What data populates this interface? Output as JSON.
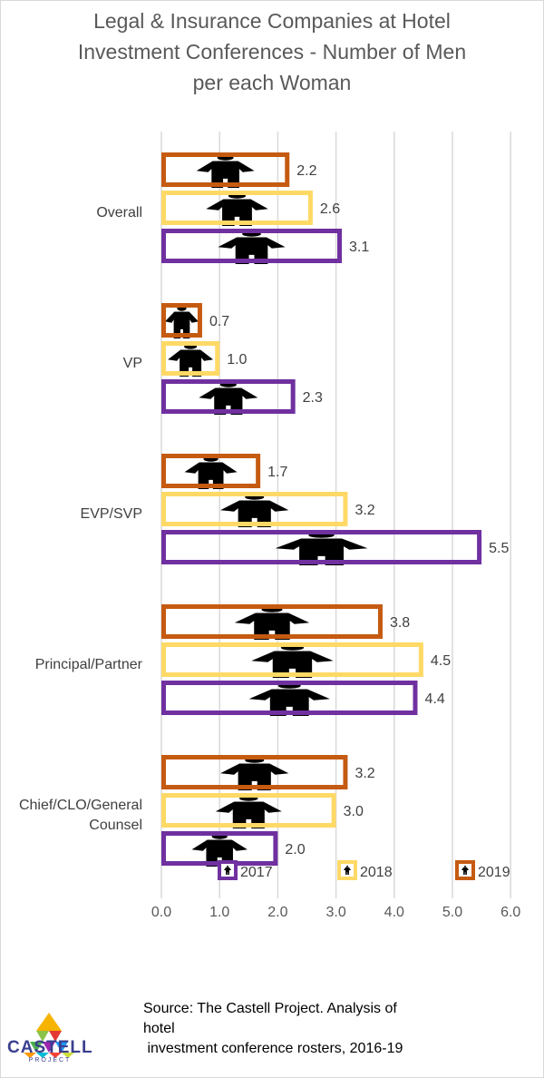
{
  "title_lines": [
    "Legal & Insurance Companies at Hotel",
    "Investment Conferences - Number of Men",
    "per each Woman"
  ],
  "colors": {
    "2017": "#7030a0",
    "2018": "#ffd966",
    "2019": "#c55a11",
    "grid": "#d9d9d9",
    "figure": "#000000"
  },
  "chart_data": {
    "type": "bar",
    "orientation": "horizontal",
    "title": "Legal & Insurance Companies at Hotel Investment Conferences - Number of Men per each Woman",
    "categories": [
      "Overall",
      "VP",
      "EVP/SVP",
      "Principal/Partner",
      "Chief/CLO/General Counsel"
    ],
    "category_label_lines": [
      [
        "Overall"
      ],
      [
        "VP"
      ],
      [
        "EVP/SVP"
      ],
      [
        "Principal/Partner"
      ],
      [
        "Chief/CLO/General",
        "Counsel"
      ]
    ],
    "series": [
      {
        "name": "2019",
        "values": [
          2.2,
          0.7,
          1.7,
          3.8,
          3.2
        ],
        "labels": [
          "2.2",
          "0.7",
          "1.7",
          "3.8",
          "3.2"
        ]
      },
      {
        "name": "2018",
        "values": [
          2.6,
          1.0,
          3.2,
          4.5,
          3.0
        ],
        "labels": [
          "2.6",
          "1.0",
          "3.2",
          "4.5",
          "3.0"
        ]
      },
      {
        "name": "2017",
        "values": [
          3.1,
          2.3,
          5.5,
          4.4,
          2.0
        ],
        "labels": [
          "3.1",
          "2.3",
          "5.5",
          "4.4",
          "2.0"
        ]
      }
    ],
    "xlim": [
      0,
      6
    ],
    "xticks": [
      "0.0",
      "1.0",
      "2.0",
      "3.0",
      "4.0",
      "5.0",
      "6.0"
    ],
    "grid": true,
    "legend": {
      "position": "bottom-inside",
      "items": [
        "2017",
        "2018",
        "2019"
      ]
    }
  },
  "source_lines": [
    "Source: The Castell Project. Analysis of",
    "hotel",
    " investment conference rosters, 2016-19"
  ],
  "logo": {
    "word": "CASTELL",
    "sub": "PROJECT"
  }
}
